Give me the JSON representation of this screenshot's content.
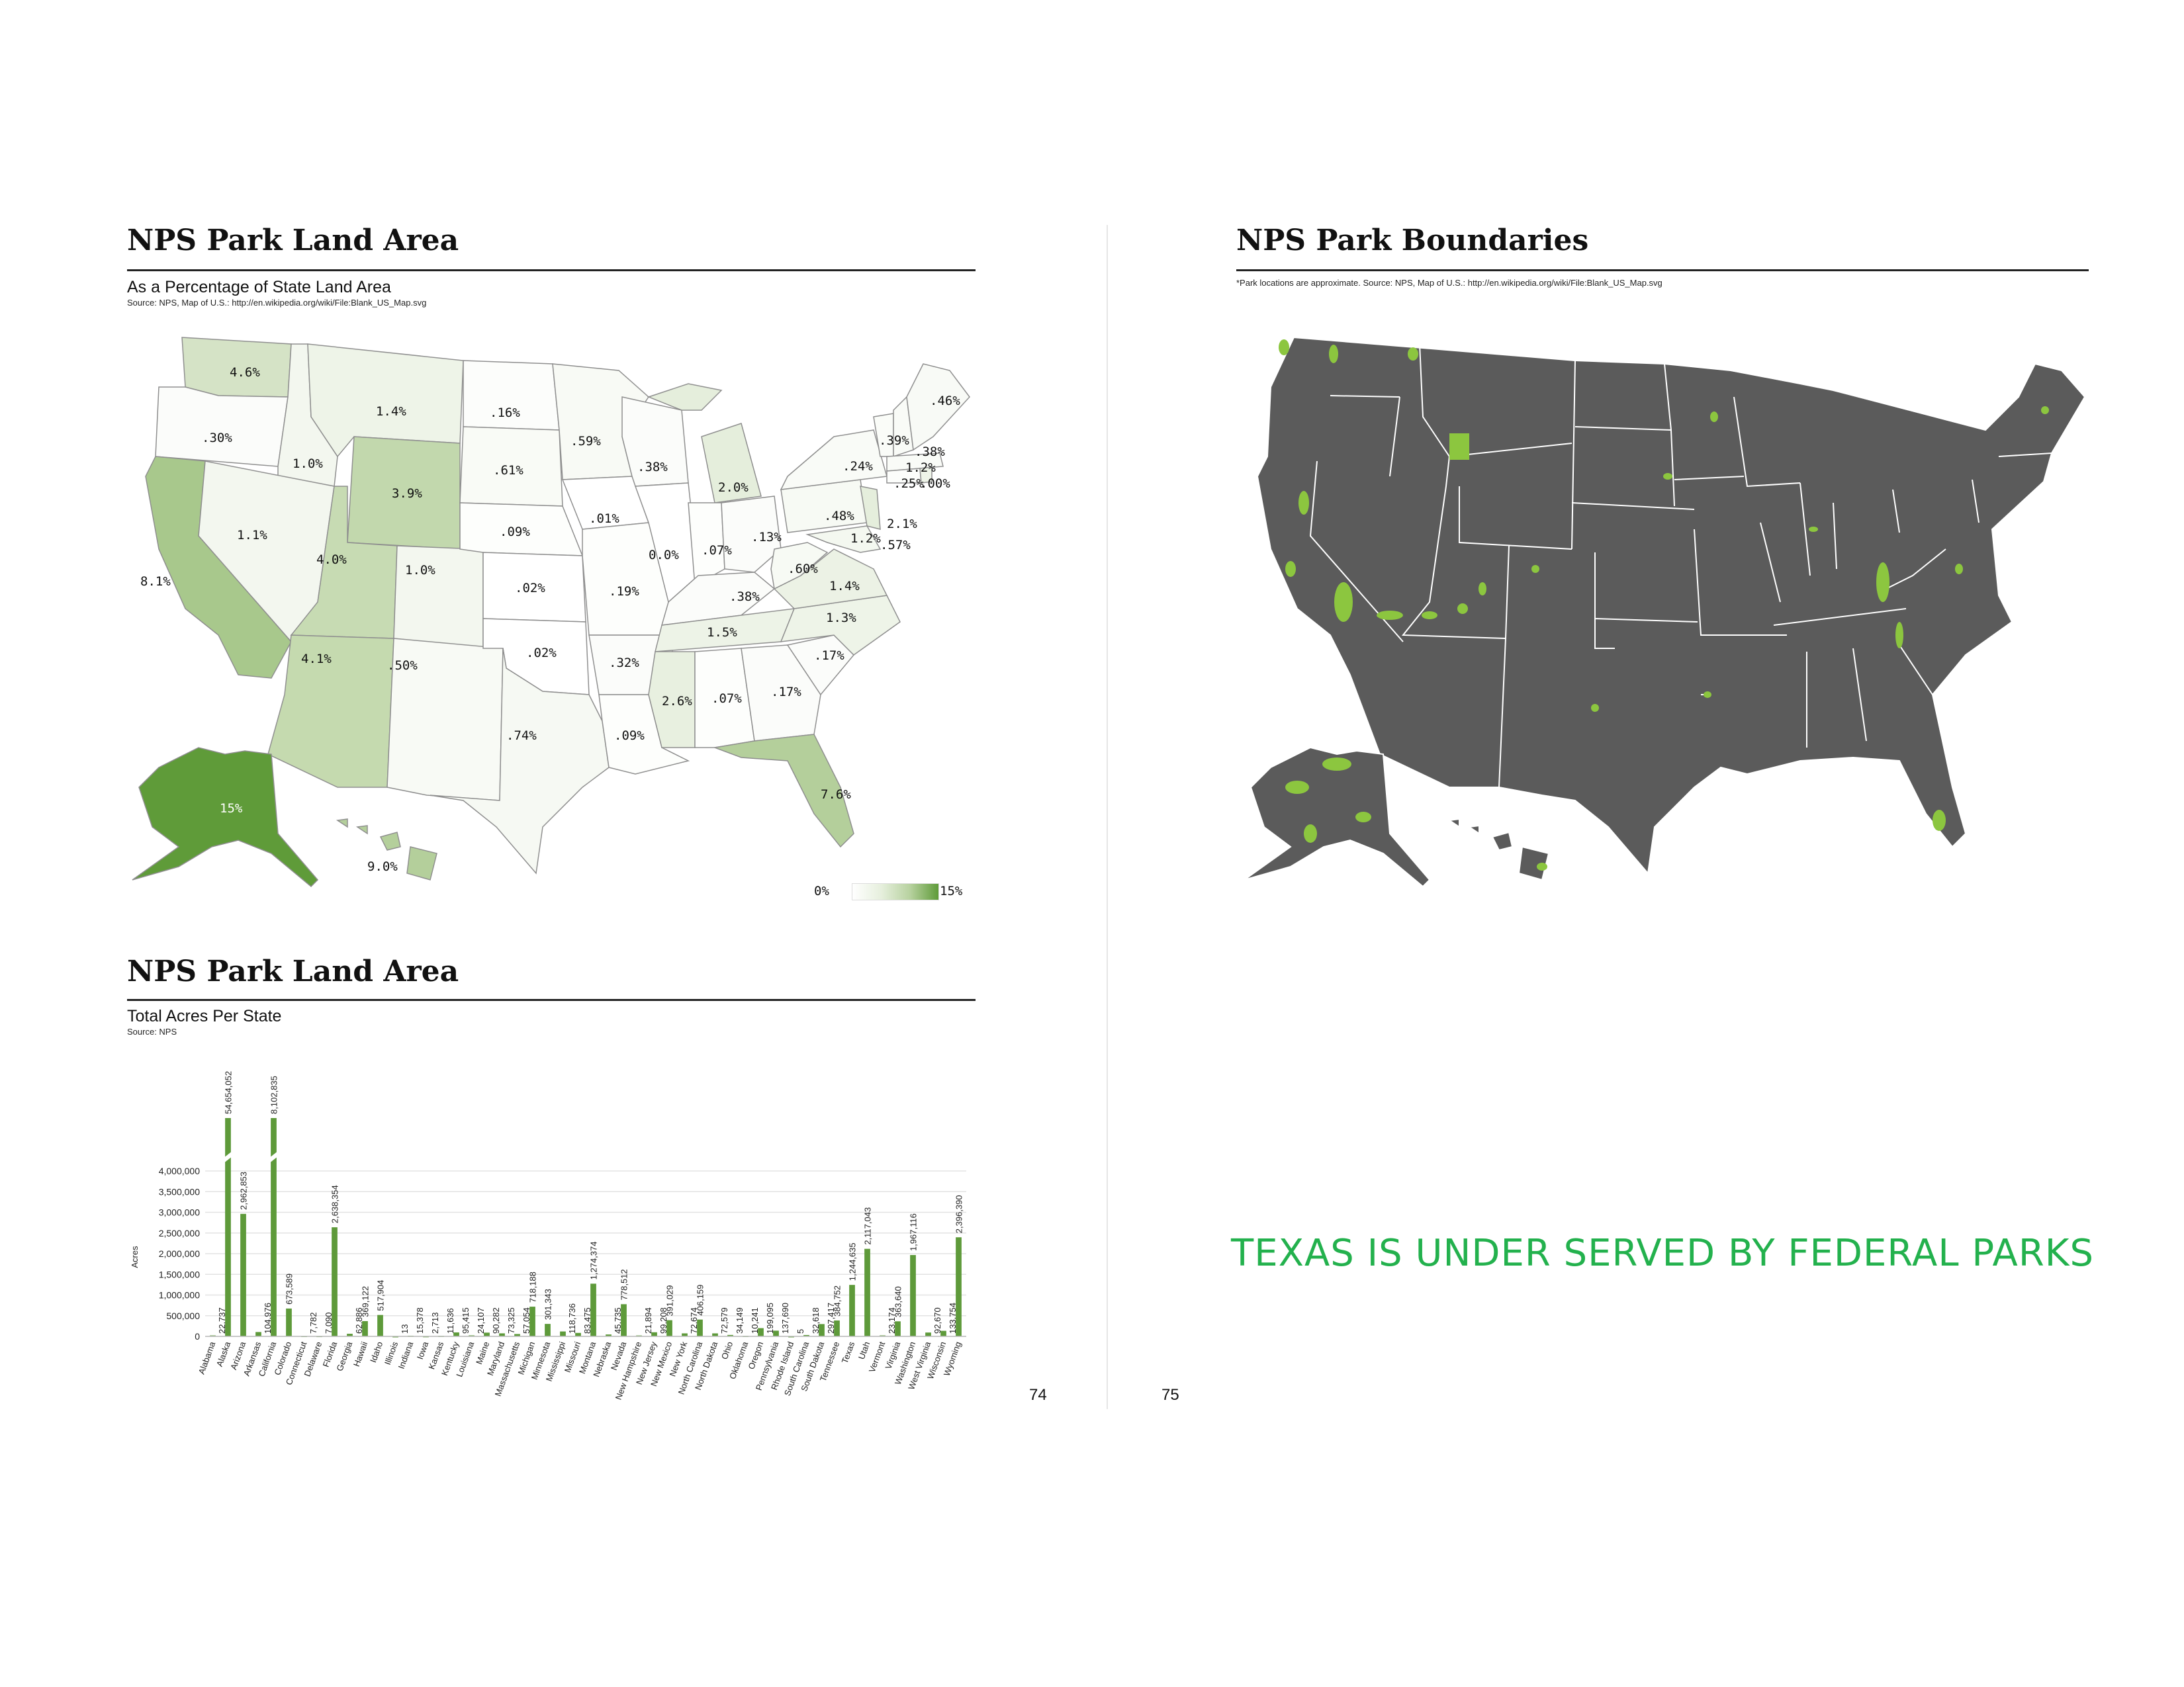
{
  "colors": {
    "accent_green": "#5e9a3a",
    "callout_green": "#23b14d",
    "map_dark": "#5b5b5b",
    "park_green": "#8cc63f"
  },
  "left_page": {
    "map_section": {
      "title": "NPS Park Land Area",
      "subtitle": "As a Percentage of State Land Area",
      "source": "Source: NPS, Map of U.S.: http://en.wikipedia.org/wiki/File:Blank_US_Map.svg",
      "state_labels": [
        {
          "state": "Washington",
          "text": "4.6%",
          "value": 4.6
        },
        {
          "state": "Oregon",
          "text": ".30%",
          "value": 0.3
        },
        {
          "state": "Idaho",
          "text": "1.0%",
          "value": 1.0
        },
        {
          "state": "Montana",
          "text": "1.4%",
          "value": 1.4
        },
        {
          "state": "North Dakota",
          "text": ".16%",
          "value": 0.16
        },
        {
          "state": "Minnesota",
          "text": ".59%",
          "value": 0.59
        },
        {
          "state": "Wisconsin",
          "text": ".38%",
          "value": 0.38
        },
        {
          "state": "Michigan",
          "text": "2.0%",
          "value": 2.0
        },
        {
          "state": "Maine",
          "text": ".46%",
          "value": 0.46
        },
        {
          "state": "New Hampshire",
          "text": ".39%",
          "value": 0.39
        },
        {
          "state": "Vermont",
          "text": ".24%",
          "value": 0.24
        },
        {
          "state": "Massachusetts",
          "text": ".38%",
          "value": 0.38
        },
        {
          "state": "Rhode Island",
          "text": "1.2%",
          "value": 1.2
        },
        {
          "state": "Connecticut",
          "text": ".25%",
          "value": 0.25
        },
        {
          "state": "Connecticut_alt",
          "text": ".00%",
          "value": 0.0
        },
        {
          "state": "South Dakota",
          "text": ".61%",
          "value": 0.61
        },
        {
          "state": "Wyoming",
          "text": "3.9%",
          "value": 3.9
        },
        {
          "state": "California",
          "text": "8.1%",
          "value": 8.1
        },
        {
          "state": "Nevada",
          "text": "1.1%",
          "value": 1.1
        },
        {
          "state": "Utah",
          "text": "4.0%",
          "value": 4.0
        },
        {
          "state": "Colorado",
          "text": "1.0%",
          "value": 1.0
        },
        {
          "state": "Nebraska",
          "text": ".09%",
          "value": 0.09
        },
        {
          "state": "Iowa",
          "text": ".01%",
          "value": 0.01
        },
        {
          "state": "Illinois",
          "text": "0.0%",
          "value": 0.0
        },
        {
          "state": "Indiana",
          "text": ".07%",
          "value": 0.07
        },
        {
          "state": "Ohio",
          "text": ".13%",
          "value": 0.13
        },
        {
          "state": "Pennsylvania",
          "text": ".48%",
          "value": 0.48
        },
        {
          "state": "New Jersey",
          "text": "2.1%",
          "value": 2.1
        },
        {
          "state": "Delaware",
          "text": "1.2%",
          "value": 1.2
        },
        {
          "state": "Maryland",
          "text": ".57%",
          "value": 0.57
        },
        {
          "state": "West Virginia",
          "text": ".60%",
          "value": 0.6
        },
        {
          "state": "Virginia",
          "text": "1.4%",
          "value": 1.4
        },
        {
          "state": "Kansas",
          "text": ".02%",
          "value": 0.02
        },
        {
          "state": "Missouri",
          "text": ".19%",
          "value": 0.19
        },
        {
          "state": "Kentucky",
          "text": ".38%",
          "value": 0.38
        },
        {
          "state": "Tennessee",
          "text": "1.5%",
          "value": 1.5
        },
        {
          "state": "North Carolina",
          "text": "1.3%",
          "value": 1.3
        },
        {
          "state": "South Carolina",
          "text": ".17%",
          "value": 0.17
        },
        {
          "state": "Arizona",
          "text": "4.1%",
          "value": 4.1
        },
        {
          "state": "New Mexico",
          "text": ".50%",
          "value": 0.5
        },
        {
          "state": "Oklahoma",
          "text": ".02%",
          "value": 0.02
        },
        {
          "state": "Arkansas",
          "text": ".32%",
          "value": 0.32
        },
        {
          "state": "Mississippi",
          "text": "2.6%",
          "value": 2.6
        },
        {
          "state": "Alabama",
          "text": ".07%",
          "value": 0.07
        },
        {
          "state": "Georgia",
          "text": ".17%",
          "value": 0.17
        },
        {
          "state": "Texas",
          "text": ".74%",
          "value": 0.74
        },
        {
          "state": "Louisiana",
          "text": ".09%",
          "value": 0.09
        },
        {
          "state": "Florida",
          "text": "7.6%",
          "value": 7.6
        },
        {
          "state": "Alaska",
          "text": "15%",
          "value": 15
        },
        {
          "state": "Hawaii",
          "text": "9.0%",
          "value": 9.0
        }
      ],
      "legend": {
        "min_label": "0%",
        "max_label": "15%"
      }
    },
    "chart_section": {
      "title": "NPS Park Land Area",
      "subtitle": "Total Acres Per State",
      "source": "Source: NPS"
    },
    "page_number": "74"
  },
  "right_page": {
    "map_section": {
      "title": "NPS Park Boundaries",
      "note": "*Park locations are approximate. Source: NPS, Map of U.S.: http://en.wikipedia.org/wiki/File:Blank_US_Map.svg"
    },
    "callout": "TEXAS IS UNDER SERVED BY FEDERAL PARKS",
    "page_number": "75"
  },
  "chart_data": {
    "type": "bar",
    "title": "NPS Park Land Area",
    "subtitle": "Total Acres Per State",
    "ylabel": "Acres",
    "ylim": [
      0,
      4000000
    ],
    "yticks": [
      0,
      500000,
      1000000,
      1500000,
      2000000,
      2500000,
      3000000,
      3500000,
      4000000
    ],
    "ytick_labels": [
      "0",
      "500,000",
      "1,000,000",
      "1,500,000",
      "2,000,000",
      "2,500,000",
      "3,000,000",
      "3,500,000",
      "4,000,000"
    ],
    "grid": true,
    "categories": [
      "Alabama",
      "Alaska",
      "Arizona",
      "Arkansas",
      "California",
      "Colorado",
      "Connecticut",
      "Delaware",
      "Florida",
      "Georgia",
      "Hawaii",
      "Idaho",
      "Illinois",
      "Indiana",
      "Iowa",
      "Kansas",
      "Kentucky",
      "Louisiana",
      "Maine",
      "Maryland",
      "Massachusetts",
      "Michigan",
      "Minnesota",
      "Mississippi",
      "Missouri",
      "Montana",
      "Nebraska",
      "Nevada",
      "New Hampshire",
      "New Jersey",
      "New Mexico",
      "New York",
      "North Carolina",
      "North Dakota",
      "Ohio",
      "Oklahoma",
      "Oregon",
      "Pennsylvania",
      "Rhode Island",
      "South Carolina",
      "South Dakota",
      "Tennessee",
      "Texas",
      "Utah",
      "Vermont",
      "Virginia",
      "Washington",
      "West Virginia",
      "Wisconsin",
      "Wyoming"
    ],
    "values": [
      22737,
      54654052,
      2962853,
      104976,
      8102835,
      673589,
      7782,
      7090,
      2638354,
      62886,
      369122,
      517904,
      13,
      15378,
      2713,
      11636,
      95415,
      24107,
      90282,
      73325,
      57054,
      718188,
      301343,
      118736,
      83475,
      1274374,
      45735,
      778512,
      21894,
      99208,
      391029,
      72674,
      406159,
      72579,
      34149,
      10241,
      199095,
      137690,
      5,
      32618,
      297417,
      384752,
      1244635,
      2117043,
      23174,
      363640,
      1967116,
      92670,
      133754,
      2396390
    ],
    "value_labels": [
      "22,737",
      "54,654,052",
      "2,962,853",
      "104,976",
      "8,102,835",
      "673,589",
      "7,782",
      "7,090",
      "2,638,354",
      "62,886",
      "369,122",
      "517,904",
      "13",
      "15,378",
      "2,713",
      "11,636",
      "95,415",
      "24,107",
      "90,282",
      "73,325",
      "57,054",
      "718,188",
      "301,343",
      "118,736",
      "83,475",
      "1,274,374",
      "45,735",
      "778,512",
      "21,894",
      "99,208",
      "391,029",
      "72,674",
      "406,159",
      "72,579",
      "34,149",
      "10,241",
      "199,095",
      "137,690",
      "5",
      "32,618",
      "297,417",
      "384,752",
      "1,244,635",
      "2,117,043",
      "23,174",
      "363,640",
      "1,967,116",
      "92,670",
      "133,754",
      "2,396,390"
    ],
    "broken_axis_categories": [
      "Alaska",
      "California"
    ]
  }
}
